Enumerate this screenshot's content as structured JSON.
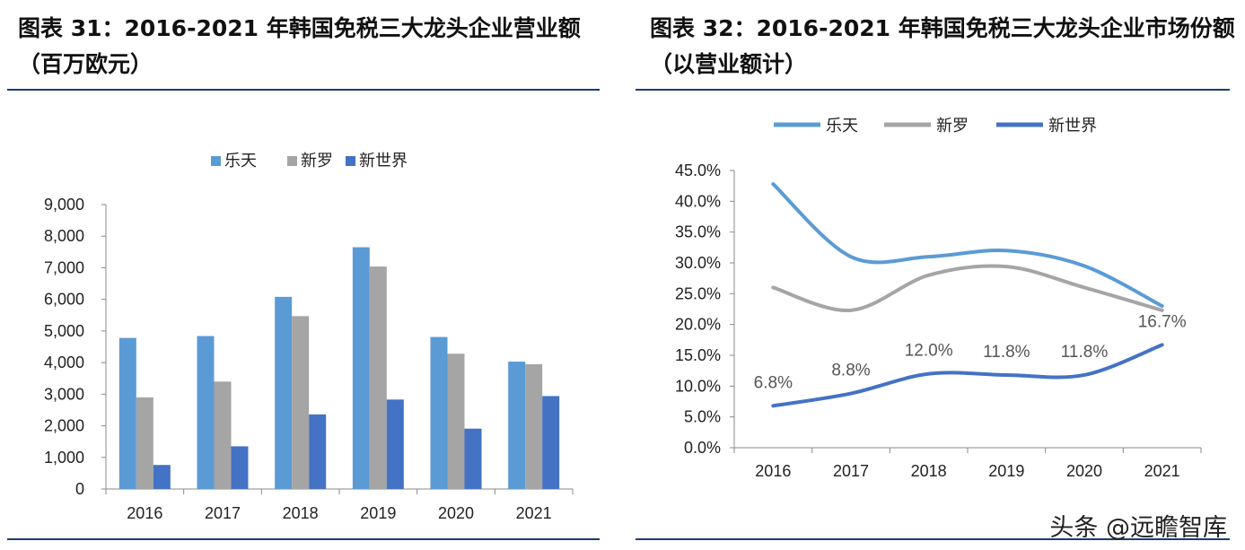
{
  "left_title": "图表 31：2016-2021 年韩国免税三大龙头企业营业额（百万欧元）",
  "right_title": "图表 32：2016-2021 年韩国免税三大龙头企业市场份额（以营业额计）",
  "watermark": "头条 @远瞻智库",
  "colors": {
    "lotte": "#5b9bd5",
    "shilla": "#a5a5a5",
    "shinsegae": "#4472c4",
    "rule": "#1f3b6f"
  },
  "chart_data": [
    {
      "type": "bar",
      "title": "2016-2021 年韩国免税三大龙头企业营业额（百万欧元）",
      "categories": [
        "2016",
        "2017",
        "2018",
        "2019",
        "2020",
        "2021"
      ],
      "series": [
        {
          "name": "乐天",
          "values": [
            4780,
            4840,
            6080,
            7650,
            4810,
            4030
          ]
        },
        {
          "name": "新罗",
          "values": [
            2900,
            3400,
            5470,
            7040,
            4280,
            3950
          ]
        },
        {
          "name": "新世界",
          "values": [
            760,
            1350,
            2360,
            2830,
            1910,
            2940
          ]
        }
      ],
      "yticks": [
        "0",
        "1,000",
        "2,000",
        "3,000",
        "4,000",
        "5,000",
        "6,000",
        "7,000",
        "8,000",
        "9,000"
      ],
      "ylim": [
        0,
        9000
      ],
      "legend": "top"
    },
    {
      "type": "line",
      "title": "2016-2021 年韩国免税三大龙头企业市场份额（以营业额计）",
      "categories": [
        "2016",
        "2017",
        "2018",
        "2019",
        "2020",
        "2021"
      ],
      "series": [
        {
          "name": "乐天",
          "values": [
            42.8,
            31.0,
            31.0,
            32.0,
            29.5,
            23.0
          ]
        },
        {
          "name": "新罗",
          "values": [
            26.0,
            22.3,
            28.0,
            29.4,
            26.0,
            22.3
          ]
        },
        {
          "name": "新世界",
          "values": [
            6.8,
            8.8,
            12.0,
            11.8,
            11.8,
            16.7
          ]
        }
      ],
      "data_labels": [
        "6.8%",
        "8.8%",
        "12.0%",
        "11.8%",
        "11.8%",
        "16.7%"
      ],
      "yticks": [
        "0.0%",
        "5.0%",
        "10.0%",
        "15.0%",
        "20.0%",
        "25.0%",
        "30.0%",
        "35.0%",
        "40.0%",
        "45.0%"
      ],
      "ylim": [
        0,
        45
      ],
      "legend": "top"
    }
  ]
}
